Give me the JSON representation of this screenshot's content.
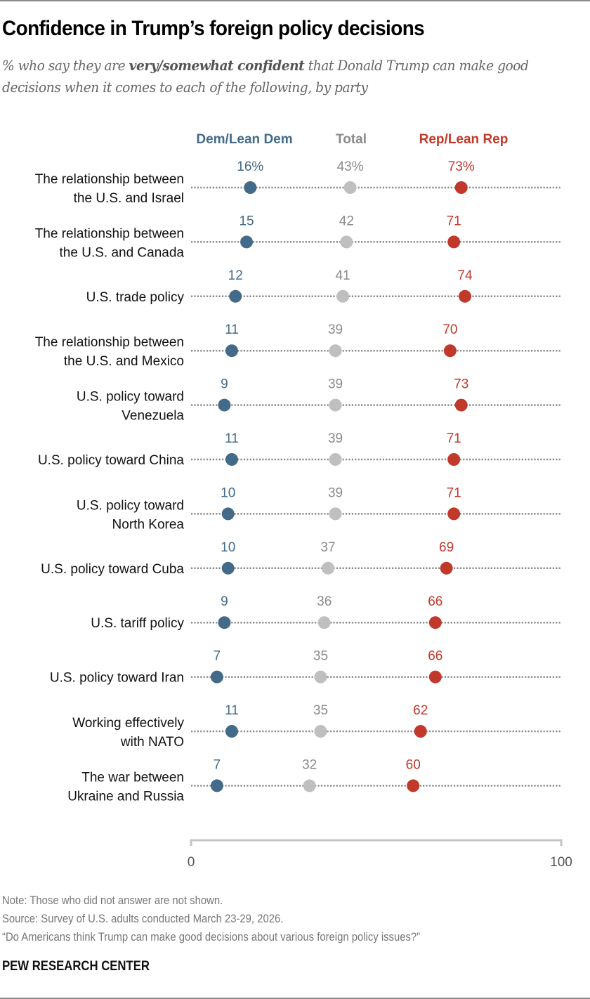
{
  "header": {
    "title": "Confidence in Trump’s foreign policy decisions",
    "subtitle_pre": "% who say they are ",
    "subtitle_bold": "very/somewhat confident",
    "subtitle_post": " that Donald Trump can make good decisions when it comes to each of the following, by party"
  },
  "footer": {
    "note": "Note: Those who did not answer are not shown.",
    "source": "Source: Survey of U.S. adults conducted March 23-29, 2026.",
    "report": "“Do Americans think Trump can make good decisions about various foreign policy issues?”",
    "brand": "PEW RESEARCH CENTER"
  },
  "colors": {
    "dem": "#436b89",
    "total": "#bfbfbf",
    "total_text": "#8a8a8a",
    "rep": "#c0392b",
    "gridline": "#8a8a8a",
    "axis": "#c4c4c4"
  },
  "chart_data": {
    "type": "scatter",
    "subtype": "dot-plot",
    "title": "Confidence in Trump’s foreign policy decisions",
    "xlabel": "",
    "ylabel": "",
    "xlim": [
      0,
      100
    ],
    "x_ticks": [
      "0",
      "100"
    ],
    "grid": false,
    "legend_position": "top",
    "value_suffix_first_row": "%",
    "categories": [
      [
        "The relationship between",
        "the U.S. and Israel"
      ],
      [
        "The relationship between",
        "the U.S. and Canada"
      ],
      [
        "U.S. trade policy"
      ],
      [
        "The relationship between",
        "the U.S. and Mexico"
      ],
      [
        "U.S. policy toward",
        "Venezuela"
      ],
      [
        "U.S. policy toward China"
      ],
      [
        "U.S. policy toward",
        "North Korea"
      ],
      [
        "U.S. policy toward Cuba"
      ],
      [
        "U.S. tariff policy"
      ],
      [
        "U.S. policy toward Iran"
      ],
      [
        "Working effectively",
        "with NATO"
      ],
      [
        "The war between",
        "Ukraine and Russia"
      ]
    ],
    "series": [
      {
        "name": "Dem/Lean Dem",
        "key": "dem",
        "values": [
          16,
          15,
          12,
          11,
          9,
          11,
          10,
          10,
          9,
          7,
          11,
          7
        ]
      },
      {
        "name": "Total",
        "key": "total",
        "values": [
          43,
          42,
          41,
          39,
          39,
          39,
          39,
          37,
          36,
          35,
          35,
          32
        ]
      },
      {
        "name": "Rep/Lean Rep",
        "key": "rep",
        "values": [
          73,
          71,
          74,
          70,
          73,
          71,
          71,
          69,
          66,
          66,
          62,
          60
        ]
      }
    ]
  }
}
